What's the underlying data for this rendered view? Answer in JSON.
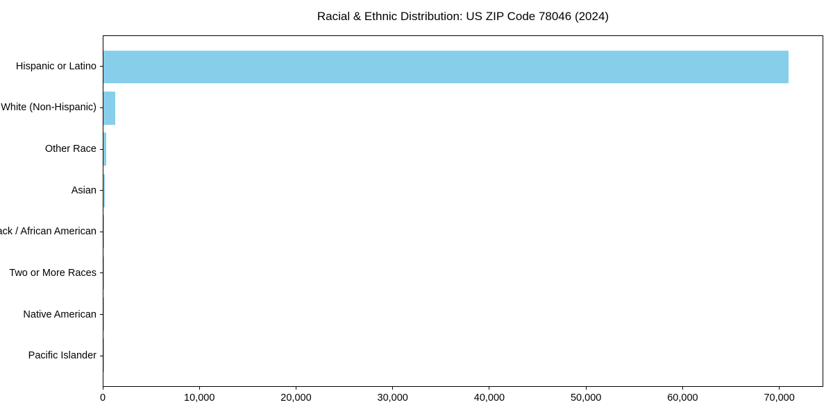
{
  "chart_data": {
    "type": "bar",
    "orientation": "horizontal",
    "title": "Racial & Ethnic Distribution: US ZIP Code 78046 (2024)",
    "categories": [
      "Hispanic or Latino",
      "White (Non-Hispanic)",
      "Other Race",
      "Asian",
      "Black / African American",
      "Two or More Races",
      "Native American",
      "Pacific Islander"
    ],
    "values": [
      71000,
      1250,
      320,
      170,
      80,
      60,
      25,
      10
    ],
    "bar_color": "#87CEEB",
    "axis_color": "#000000",
    "text_color": "#000000",
    "background_color": "#ffffff",
    "xlabel": "",
    "ylabel": "",
    "xlim": [
      0,
      74550
    ],
    "x_ticks": [
      0,
      10000,
      20000,
      30000,
      40000,
      50000,
      60000,
      70000
    ],
    "x_tick_labels": [
      "0",
      "10,000",
      "20,000",
      "30,000",
      "40,000",
      "50,000",
      "60,000",
      "70,000"
    ],
    "grid": false,
    "legend": null
  }
}
